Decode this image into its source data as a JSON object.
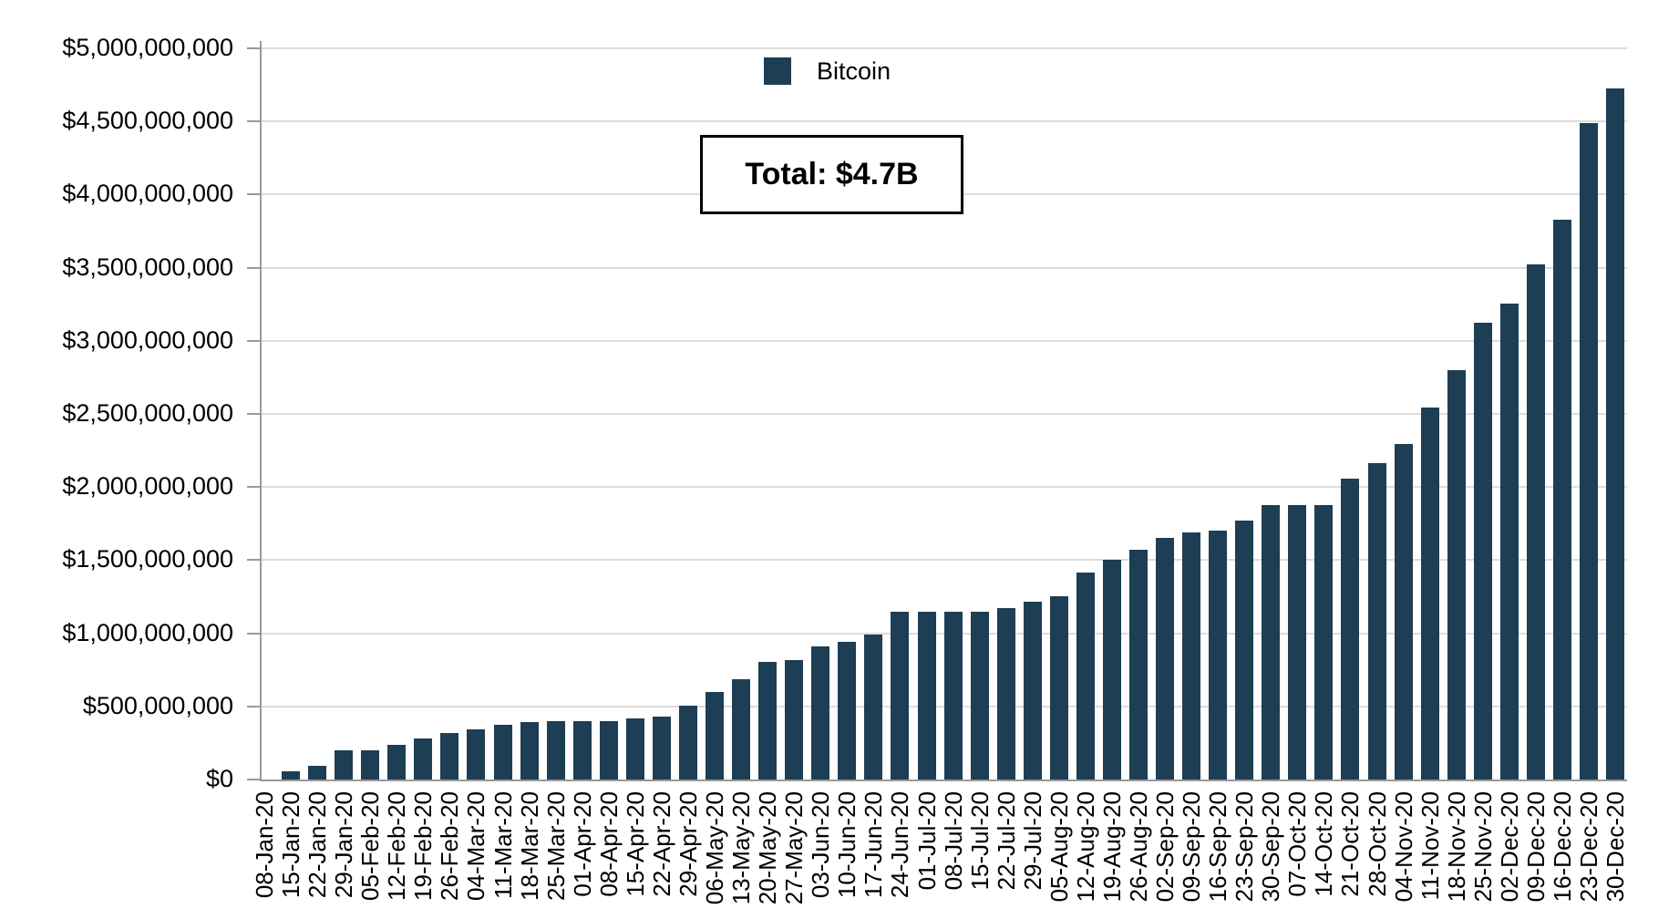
{
  "chart_data": {
    "type": "bar",
    "title": "",
    "xlabel": "",
    "ylabel": "",
    "grid": true,
    "legend_position": "top-center",
    "legend": [
      {
        "label": "Bitcoin",
        "color": "#1d3e54"
      }
    ],
    "annotation": {
      "text": "Total: $4.7B"
    },
    "ylim": [
      0,
      5000000000
    ],
    "ytick_step": 500000000,
    "ytick_labels_top_to_bottom": [
      "$5,000,000,000",
      "$4,500,000,000",
      "$4,000,000,000",
      "$3,500,000,000",
      "$3,000,000,000",
      "$2,500,000,000",
      "$2,000,000,000",
      "$1,500,000,000",
      "$1,000,000,000",
      "$500,000,000",
      "$0"
    ],
    "categories": [
      "08-Jan-20",
      "15-Jan-20",
      "22-Jan-20",
      "29-Jan-20",
      "05-Feb-20",
      "12-Feb-20",
      "19-Feb-20",
      "26-Feb-20",
      "04-Mar-20",
      "11-Mar-20",
      "18-Mar-20",
      "25-Mar-20",
      "01-Apr-20",
      "08-Apr-20",
      "15-Apr-20",
      "22-Apr-20",
      "29-Apr-20",
      "06-May-20",
      "13-May-20",
      "20-May-20",
      "27-May-20",
      "03-Jun-20",
      "10-Jun-20",
      "17-Jun-20",
      "24-Jun-20",
      "01-Jul-20",
      "08-Jul-20",
      "15-Jul-20",
      "22-Jul-20",
      "29-Jul-20",
      "05-Aug-20",
      "12-Aug-20",
      "19-Aug-20",
      "26-Aug-20",
      "02-Sep-20",
      "09-Sep-20",
      "16-Sep-20",
      "23-Sep-20",
      "30-Sep-20",
      "07-Oct-20",
      "14-Oct-20",
      "21-Oct-20",
      "28-Oct-20",
      "04-Nov-20",
      "11-Nov-20",
      "18-Nov-20",
      "25-Nov-20",
      "02-Dec-20",
      "09-Dec-20",
      "16-Dec-20",
      "23-Dec-20",
      "30-Dec-20"
    ],
    "series": [
      {
        "name": "Bitcoin",
        "values": [
          0,
          55000000,
          95000000,
          200000000,
          200000000,
          240000000,
          280000000,
          320000000,
          345000000,
          375000000,
          395000000,
          400000000,
          400000000,
          400000000,
          420000000,
          430000000,
          505000000,
          600000000,
          685000000,
          805000000,
          815000000,
          910000000,
          940000000,
          990000000,
          1145000000,
          1145000000,
          1150000000,
          1150000000,
          1170000000,
          1215000000,
          1255000000,
          1415000000,
          1500000000,
          1570000000,
          1655000000,
          1690000000,
          1700000000,
          1770000000,
          1875000000,
          1875000000,
          1875000000,
          2060000000,
          2165000000,
          2295000000,
          2545000000,
          2800000000,
          3125000000,
          3255000000,
          3520000000,
          3830000000,
          4490000000,
          4725000000
        ]
      }
    ],
    "colors": {
      "bar": "#1d3e54",
      "gridline": "#dcdcdc",
      "axis": "#999999",
      "text": "#000000"
    }
  }
}
